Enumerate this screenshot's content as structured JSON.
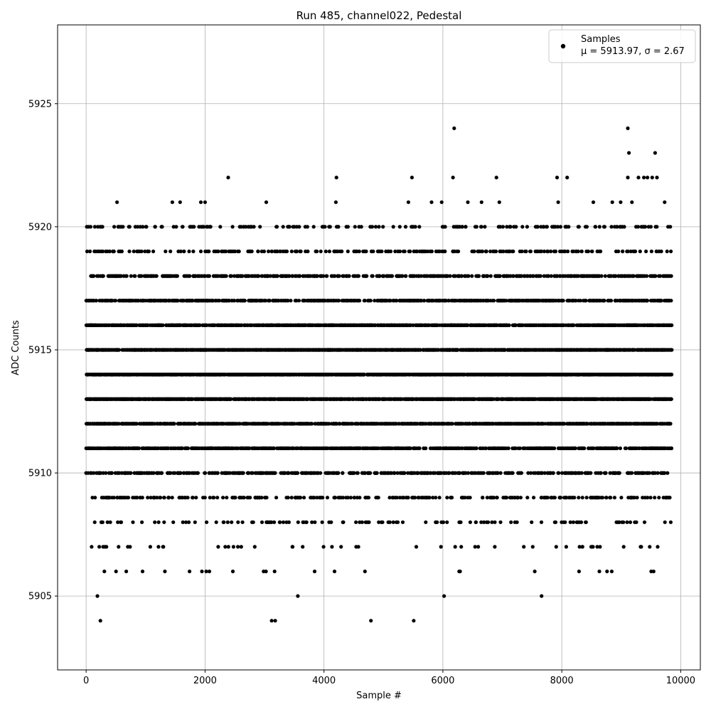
{
  "chart_data": {
    "type": "scatter",
    "title": "Run 485, channel022, Pedestal",
    "xlabel": "Sample #",
    "ylabel": "ADC Counts",
    "xlim": [
      -480,
      10330
    ],
    "ylim": [
      5902.0,
      5928.2
    ],
    "xticks": [
      0,
      2000,
      4000,
      6000,
      8000,
      10000
    ],
    "xtick_labels": [
      "0",
      "2000",
      "4000",
      "6000",
      "8000",
      "10000"
    ],
    "yticks": [
      5905,
      5910,
      5915,
      5920,
      5925
    ],
    "ytick_labels": [
      "5905",
      "5910",
      "5915",
      "5920",
      "5925"
    ],
    "grid": true,
    "legend_position": "top-right",
    "series": [
      {
        "name": "Samples",
        "stats_label": "μ = 5913.97, σ = 2.67",
        "color": "#000000",
        "n_samples": 9850,
        "mean": 5913.97,
        "std": 2.67,
        "outliers": [
          {
            "x": 190,
            "y": 5905
          },
          {
            "x": 240,
            "y": 5904
          },
          {
            "x": 3120,
            "y": 5904
          },
          {
            "x": 3180,
            "y": 5904
          },
          {
            "x": 3560,
            "y": 5905
          },
          {
            "x": 4790,
            "y": 5904
          },
          {
            "x": 5510,
            "y": 5904
          },
          {
            "x": 6020,
            "y": 5905
          },
          {
            "x": 7660,
            "y": 5905
          },
          {
            "x": 6190,
            "y": 5924
          },
          {
            "x": 9110,
            "y": 5924
          },
          {
            "x": 9130,
            "y": 5923
          },
          {
            "x": 9570,
            "y": 5923
          },
          {
            "x": 2390,
            "y": 5922
          },
          {
            "x": 4210,
            "y": 5922
          },
          {
            "x": 5480,
            "y": 5922
          },
          {
            "x": 6170,
            "y": 5922
          },
          {
            "x": 6900,
            "y": 5922
          },
          {
            "x": 7920,
            "y": 5922
          },
          {
            "x": 8090,
            "y": 5922
          },
          {
            "x": 9110,
            "y": 5922
          },
          {
            "x": 9290,
            "y": 5922
          },
          {
            "x": 9380,
            "y": 5922
          },
          {
            "x": 9440,
            "y": 5922
          },
          {
            "x": 9520,
            "y": 5922
          },
          {
            "x": 9600,
            "y": 5922
          },
          {
            "x": 520,
            "y": 5921
          },
          {
            "x": 1450,
            "y": 5921
          },
          {
            "x": 1580,
            "y": 5921
          },
          {
            "x": 1930,
            "y": 5921
          },
          {
            "x": 2000,
            "y": 5921
          },
          {
            "x": 3030,
            "y": 5921
          },
          {
            "x": 4200,
            "y": 5921
          },
          {
            "x": 5420,
            "y": 5921
          },
          {
            "x": 5810,
            "y": 5921
          },
          {
            "x": 5980,
            "y": 5921
          },
          {
            "x": 6420,
            "y": 5921
          },
          {
            "x": 6650,
            "y": 5921
          },
          {
            "x": 6950,
            "y": 5921
          },
          {
            "x": 7940,
            "y": 5921
          },
          {
            "x": 8530,
            "y": 5921
          },
          {
            "x": 8850,
            "y": 5921
          },
          {
            "x": 8990,
            "y": 5921
          },
          {
            "x": 9180,
            "y": 5921
          },
          {
            "x": 9730,
            "y": 5921
          },
          {
            "x": 9730,
            "y": 5910
          }
        ]
      }
    ]
  }
}
